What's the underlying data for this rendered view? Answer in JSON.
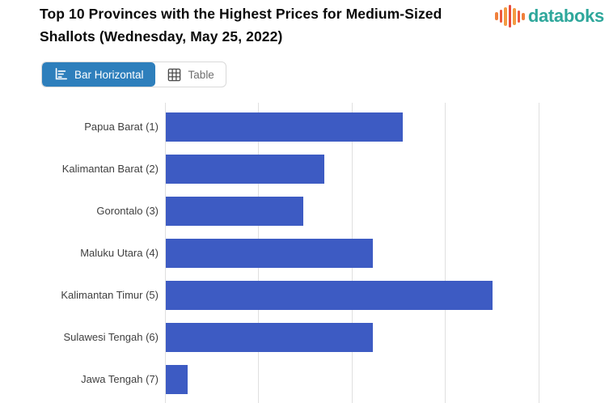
{
  "header": {
    "title": "Top 10 Provinces with the Highest Prices for Medium-Sized Shallots (Wednesday, May 25, 2022)",
    "brand": "databoks",
    "brand_color": "#2EA79B",
    "logo_bars": {
      "heights": [
        10,
        16,
        23,
        28,
        21,
        15,
        9
      ],
      "colors": [
        "#F0803C",
        "#ED5A40",
        "#F39B43",
        "#E84C3D",
        "#F39B43",
        "#ED5A40",
        "#F0803C"
      ]
    }
  },
  "toolbar": {
    "bar_horizontal_label": "Bar Horizontal",
    "table_label": "Table",
    "active_view": "Bar Horizontal",
    "active_bg": "#2E7FBC",
    "inactive_text_color": "#6e6e6e"
  },
  "chart_data": {
    "type": "bar",
    "orientation": "horizontal",
    "title": "Top 10 Provinces with the Highest Prices for Medium-Sized Shallots (Wednesday, May 25, 2022)",
    "categories": [
      "Papua Barat (1)",
      "Kalimantan Barat (2)",
      "Gorontalo (3)",
      "Maluku Utara (4)",
      "Kalimantan Timur (5)",
      "Sulawesi Tengah (6)",
      "Jawa Tengah (7)"
    ],
    "values_in_gridline_units": [
      2.54,
      1.7,
      1.47,
      2.22,
      3.5,
      2.22,
      0.23
    ],
    "x_axis_tick_labels_visible": false,
    "x_gridline_count_visible": 5,
    "x_visible_range_gridline_units": [
      0,
      4.75
    ],
    "rows_visible": "7 of 10 (chart cropped at bottom of screenshot)",
    "legend": "none",
    "grid": true,
    "bar_color": "#3D5BC3",
    "gridline_color": "#e0e0e0",
    "label_color": "#3f3f3f"
  }
}
